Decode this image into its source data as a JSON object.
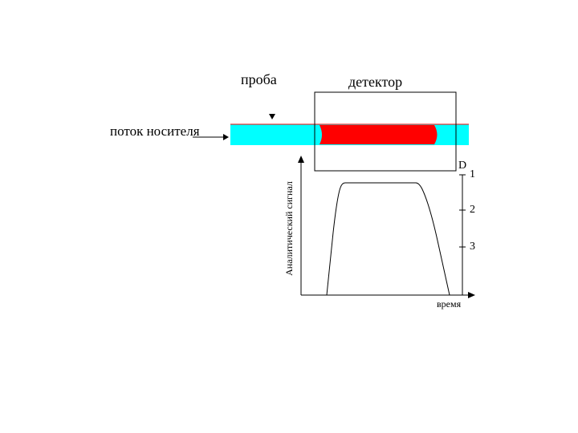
{
  "labels": {
    "sample": "проба",
    "detector": "детектор",
    "carrier_flow": "поток носителя",
    "y_axis": "Аналитический сигнал",
    "x_axis": "время",
    "right_axis": "D",
    "right_ticks": [
      "1",
      "2",
      "3"
    ]
  },
  "colors": {
    "carrier": "#00FFFF",
    "sample_zone": "#FF0000",
    "lines": "#000000"
  }
}
